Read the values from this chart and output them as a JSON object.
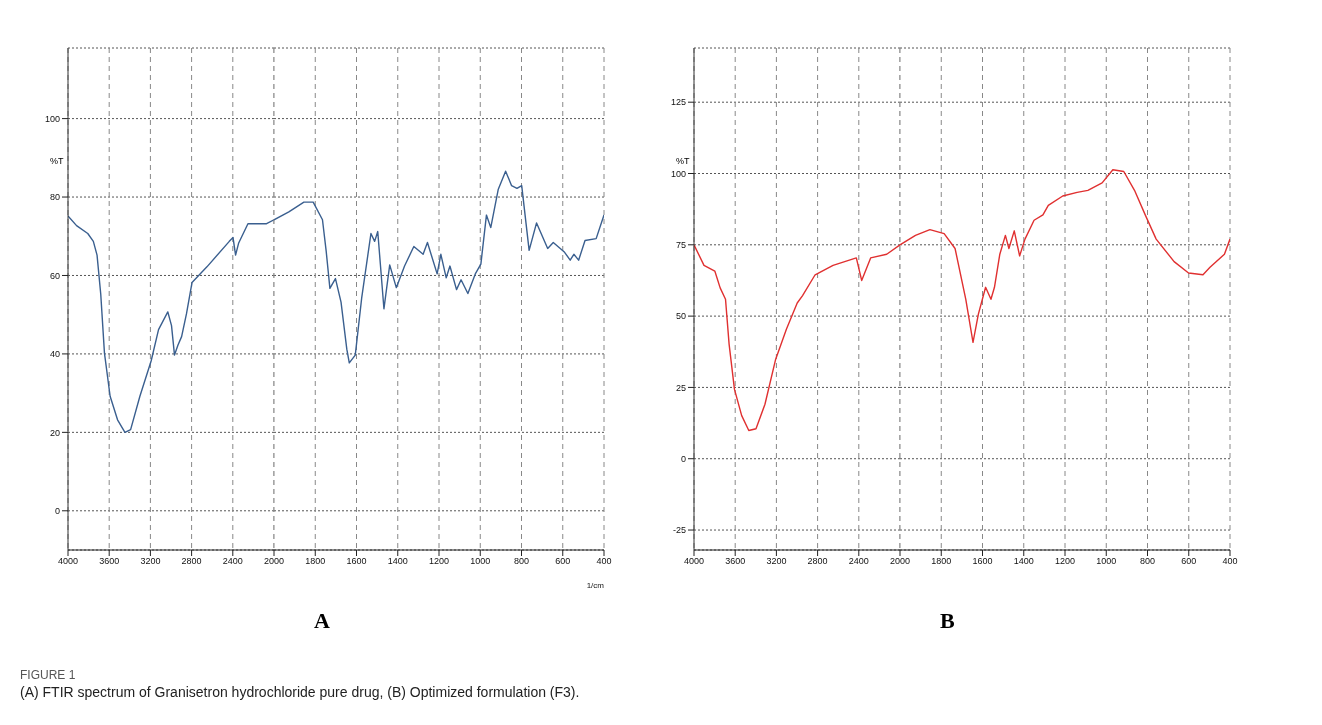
{
  "chart_data": [
    {
      "type": "line",
      "ylabel": "%T",
      "xlim": [
        4000,
        2000
      ],
      "xticks": [
        4000,
        3600,
        3200,
        2800,
        2400
      ],
      "ylim": [
        -10,
        118
      ],
      "yticks": [
        0,
        20,
        40,
        60,
        80,
        100
      ],
      "grid": true,
      "annotations": [
        "FIGURE 1",
        "(A) FTIR spectrum of Granisetron hydrochloride pure drug, (B) Optimized formulation (F3)."
      ],
      "series": [
        {
          "color": "#3a5f8f",
          "x": [
            4000,
            3917,
            3808,
            3754,
            3718,
            3682,
            3646,
            3591,
            3519,
            3447,
            3392,
            3302,
            3193,
            3121,
            3031,
            2995,
            2966,
            2933,
            2897,
            2850,
            2796,
            2651,
            2434,
            2398,
            2373,
            2344,
            2253,
            2072,
            2000
          ],
          "values": [
            75.2,
            72.7,
            70.7,
            68.7,
            65.2,
            55.2,
            40.2,
            29.2,
            23.2,
            20,
            20.7,
            29.2,
            38.2,
            46.2,
            50.7,
            47.2,
            39.7,
            42.2,
            44.4,
            50.2,
            58.2,
            62.2,
            68.7,
            69.7,
            65.2,
            68.2,
            73.2,
            73.2,
            74.2
          ]
        }
      ]
    },
    {
      "type": "line",
      "title": "A",
      "xlabel": "1/cm",
      "xlim": [
        2000,
        400
      ],
      "xticks": [
        2000,
        1800,
        1600,
        1400,
        1200,
        1000,
        800,
        600,
        400
      ],
      "ylim": [
        -10,
        118
      ],
      "yticks": [
        0,
        20,
        40,
        60,
        80,
        100
      ],
      "grid": true,
      "tick_labels": "x",
      "series": [
        {
          "color": "#3a5f8f",
          "x": [
            2000,
            1928,
            1855,
            1810,
            1765,
            1747,
            1729,
            1702,
            1675,
            1647,
            1635,
            1606,
            1575,
            1530,
            1512,
            1497,
            1467,
            1439,
            1407,
            1367,
            1322,
            1277,
            1256,
            1209,
            1191,
            1165,
            1147,
            1115,
            1093,
            1060,
            1024,
            997,
            970,
            949,
            913,
            877,
            848,
            822,
            799,
            763,
            727,
            673,
            646,
            591,
            564,
            546,
            523,
            492,
            438,
            400
          ],
          "values": [
            74.2,
            76.2,
            78.7,
            78.7,
            74.2,
            66.2,
            56.7,
            59.2,
            53.2,
            41.2,
            37.7,
            39.7,
            54.2,
            70.7,
            68.7,
            71.2,
            51.5,
            62.7,
            56.9,
            62.4,
            67.4,
            65.4,
            68.4,
            60.4,
            65.4,
            59.4,
            62.4,
            56.4,
            58.9,
            55.4,
            60.4,
            62.9,
            75.4,
            72.2,
            81.9,
            86.6,
            82.9,
            82.2,
            82.9,
            66.4,
            73.4,
            66.9,
            68.4,
            65.9,
            63.9,
            65.4,
            63.9,
            68.9,
            69.4,
            75.4
          ]
        }
      ]
    },
    {
      "type": "line",
      "ylabel": "%T",
      "xlim": [
        4000,
        2000
      ],
      "xticks": [
        4000,
        3600,
        3200,
        2800,
        2400
      ],
      "ylim": [
        -32,
        144
      ],
      "yticks": [
        -25,
        0,
        25,
        50,
        75,
        100,
        125
      ],
      "grid": true,
      "series": [
        {
          "color": "#e03030",
          "x": [
            4000,
            3903,
            3798,
            3746,
            3694,
            3659,
            3607,
            3537,
            3468,
            3398,
            3311,
            3207,
            3103,
            2998,
            2946,
            2824,
            2650,
            2424,
            2372,
            2285,
            2129,
            2000
          ],
          "values": [
            75,
            67.8,
            65.8,
            59.9,
            55.9,
            40.1,
            24.3,
            15.1,
            9.9,
            10.5,
            19.1,
            34.9,
            45.4,
            54.6,
            57.2,
            64.5,
            67.8,
            70.4,
            62.5,
            70.4,
            71.7,
            75
          ]
        }
      ]
    },
    {
      "type": "line",
      "title": "B",
      "xlim": [
        2000,
        400
      ],
      "xticks": [
        2000,
        1800,
        1600,
        1400,
        1200,
        1000,
        800,
        600,
        400
      ],
      "ylim": [
        -32,
        144
      ],
      "yticks": [
        -25,
        0,
        25,
        50,
        75,
        100,
        125
      ],
      "grid": true,
      "tick_labels": "x",
      "series": [
        {
          "color": "#e03030",
          "x": [
            2000,
            1925,
            1855,
            1786,
            1733,
            1681,
            1646,
            1620,
            1585,
            1559,
            1542,
            1516,
            1489,
            1472,
            1446,
            1420,
            1394,
            1350,
            1307,
            1281,
            1211,
            1141,
            1089,
            1020,
            968,
            915,
            863,
            811,
            758,
            671,
            601,
            531,
            497,
            427,
            400
          ],
          "values": [
            75,
            78.3,
            80.3,
            78.9,
            73.7,
            55.9,
            40.8,
            50.7,
            60.1,
            55.9,
            60.1,
            71.7,
            78.3,
            73.7,
            79.9,
            71.1,
            77,
            83.6,
            85.5,
            88.8,
            92.1,
            93.4,
            94.1,
            96.7,
            101.3,
            100.7,
            94.1,
            85.5,
            77,
            69.1,
            65.1,
            64.5,
            67.1,
            71.7,
            77
          ]
        }
      ]
    }
  ]
}
